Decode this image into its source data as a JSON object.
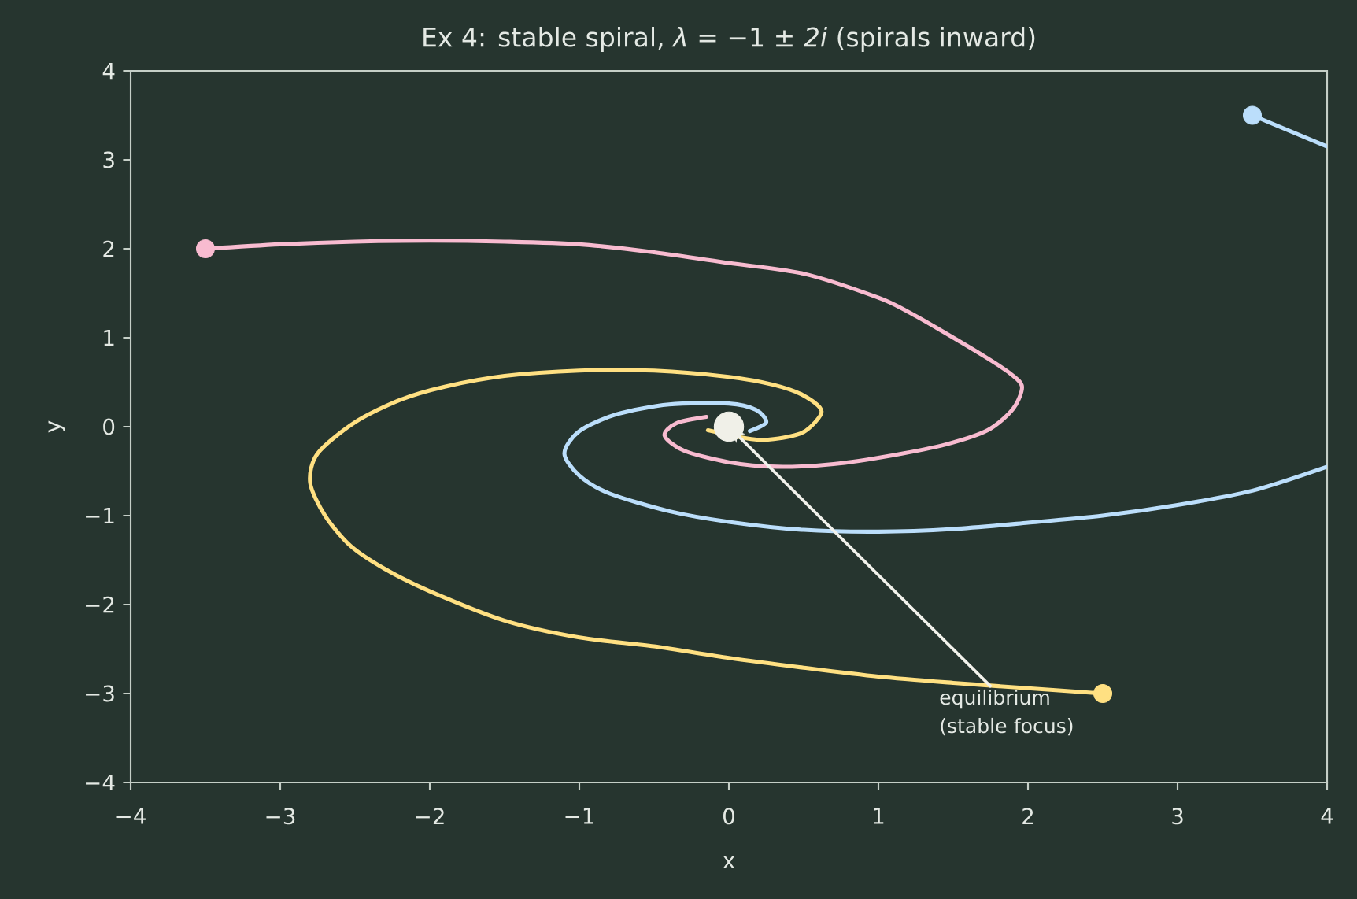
{
  "chart_data": {
    "type": "line",
    "title": "Ex 4: stable spiral, *λ* = −1 ± *2i* (spirals inward)",
    "xlabel": "x",
    "ylabel": "y",
    "xlim": [
      -4,
      4
    ],
    "ylim": [
      -4,
      4
    ],
    "xticks": [
      {
        "value": -4,
        "label": "−4"
      },
      {
        "value": -3,
        "label": "−3"
      },
      {
        "value": -2,
        "label": "−2"
      },
      {
        "value": -1,
        "label": "−1"
      },
      0,
      1,
      2,
      3,
      4
    ],
    "yticks": [
      {
        "value": -4,
        "label": "−4"
      },
      {
        "value": -3,
        "label": "−3"
      },
      {
        "value": -2,
        "label": "−2"
      },
      {
        "value": -1,
        "label": "−1"
      },
      0,
      1,
      2,
      3,
      4
    ],
    "series": [
      {
        "color": "#f8bbd0",
        "x": [
          -3.5,
          -3.0,
          -2.5,
          -2.0,
          -1.5,
          -1.0,
          -0.5,
          0.0,
          0.5,
          1.0,
          1.2,
          1.4,
          1.7,
          1.88,
          1.96,
          1.9,
          1.73,
          1.45,
          1.1,
          0.7,
          0.32,
          0.0,
          -0.3,
          -0.43,
          -0.35,
          -0.15
        ],
        "values": [
          2.0,
          2.05,
          2.08,
          2.09,
          2.08,
          2.05,
          1.96,
          1.84,
          1.72,
          1.45,
          1.29,
          1.1,
          0.8,
          0.6,
          0.45,
          0.2,
          -0.04,
          -0.2,
          -0.32,
          -0.42,
          -0.45,
          -0.4,
          -0.27,
          -0.1,
          0.04,
          0.11
        ]
      },
      {
        "color": "#ffe082",
        "x": [
          2.5,
          2.0,
          1.5,
          1.0,
          0.5,
          0.0,
          -0.5,
          -1.0,
          -1.5,
          -2.0,
          -2.3,
          -2.53,
          -2.7,
          -2.8,
          -2.75,
          -2.5,
          -2.2,
          -1.9,
          -1.5,
          -1.0,
          -0.5,
          0.0,
          0.3,
          0.5,
          0.62,
          0.5,
          0.3,
          0.15,
          -0.14
        ],
        "values": [
          -3.0,
          -2.94,
          -2.88,
          -2.81,
          -2.71,
          -2.6,
          -2.47,
          -2.37,
          -2.18,
          -1.85,
          -1.6,
          -1.34,
          -1.0,
          -0.63,
          -0.3,
          0.05,
          0.3,
          0.45,
          0.57,
          0.63,
          0.63,
          0.56,
          0.47,
          0.35,
          0.17,
          -0.06,
          -0.14,
          -0.14,
          -0.04
        ]
      },
      {
        "color": "#bbdefb",
        "x": [
          3.5,
          4.0,
          null,
          4.0,
          3.5,
          3.0,
          2.5,
          2.0,
          1.5,
          1.0,
          0.5,
          0.0,
          -0.4,
          -0.8,
          -1.0,
          -1.1,
          -1.0,
          -0.75,
          -0.4,
          0.0,
          0.18,
          0.25,
          0.14
        ],
        "values": [
          3.5,
          3.15,
          null,
          -0.45,
          -0.72,
          -0.88,
          -1.0,
          -1.08,
          -1.15,
          -1.18,
          -1.16,
          -1.07,
          -0.95,
          -0.75,
          -0.55,
          -0.3,
          -0.05,
          0.14,
          0.25,
          0.26,
          0.19,
          0.05,
          -0.05
        ]
      },
      {
        "type": "scatter",
        "marker": "circle",
        "x": [
          -3.5,
          2.5,
          3.5
        ],
        "values": [
          2,
          -3,
          3.5
        ],
        "colors": [
          "#f8bbd0",
          "#ffe082",
          "#bbdefb"
        ]
      },
      {
        "type": "scatter",
        "marker": "circle",
        "x": [
          0
        ],
        "values": [
          0
        ],
        "color": "#f0f0e8"
      }
    ],
    "annotations": [
      {
        "text": "equilibrium (stable focus)",
        "x": 0,
        "y": 0
      }
    ]
  }
}
